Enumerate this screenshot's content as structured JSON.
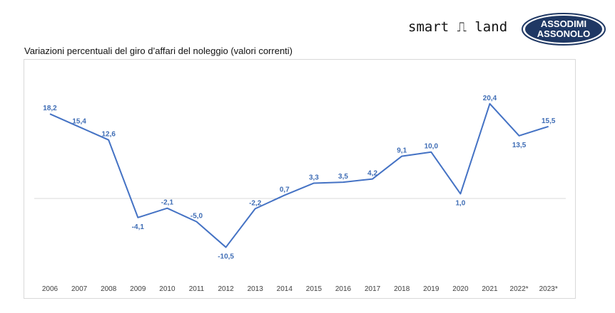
{
  "header": {
    "brand": "smart ⎍ land",
    "logo_line1": "ASSODIMI",
    "logo_line2": "ASSONOLO"
  },
  "chart_data": {
    "type": "line",
    "title": "Variazioni percentuali del giro d’affari del noleggio (valori correnti)",
    "categories": [
      "2006",
      "2007",
      "2008",
      "2009",
      "2010",
      "2011",
      "2012",
      "2013",
      "2014",
      "2015",
      "2016",
      "2017",
      "2018",
      "2019",
      "2020",
      "2021",
      "2022*",
      "2023*"
    ],
    "values": [
      18.2,
      15.4,
      12.6,
      -4.1,
      -2.1,
      -5.0,
      -10.5,
      -2.2,
      0.7,
      3.3,
      3.5,
      4.2,
      9.1,
      10.0,
      1.0,
      20.4,
      13.5,
      15.5
    ],
    "labels": [
      "18,2",
      "15,4",
      "12,6",
      "-4,1",
      "-2,1",
      "-5,0",
      "-10,5",
      "-2,2",
      "0,7",
      "3,3",
      "3,5",
      "4,2",
      "9,1",
      "10,0",
      "1,0",
      "20,4",
      "13,5",
      "15,5"
    ],
    "xlabel": "",
    "ylabel": "",
    "grid": false,
    "line_color": "#4472c4",
    "label_color": "#3f6db5",
    "axis_color": "#d9d9d9"
  }
}
